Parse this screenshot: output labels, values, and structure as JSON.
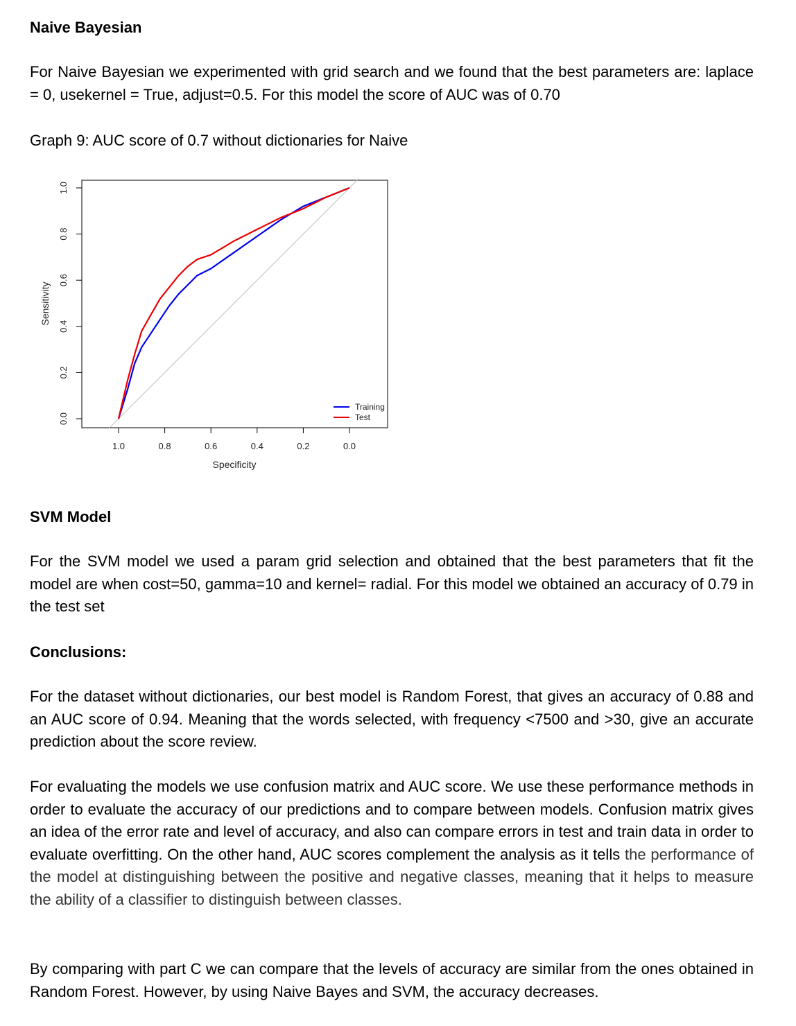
{
  "naive": {
    "heading": "Naive Bayesian",
    "paragraph": "For Naive Bayesian we experimented with grid search and we found that the best parameters are: laplace = 0, usekernel = True, adjust=0.5. For this model the score of AUC was of 0.70",
    "caption": "Graph 9: AUC score of 0.7 without dictionaries for Naive"
  },
  "chart_data": {
    "type": "line",
    "title": "",
    "xlabel": "Specificity",
    "ylabel": "Sensitivity",
    "xlim": [
      1.0,
      0.0
    ],
    "ylim": [
      0.0,
      1.0
    ],
    "x_reversed": true,
    "x_ticks": [
      "1.0",
      "0.8",
      "0.6",
      "0.4",
      "0.2",
      "0.0"
    ],
    "y_ticks": [
      "0.0",
      "0.2",
      "0.4",
      "0.6",
      "0.8",
      "1.0"
    ],
    "grid": false,
    "legend_position": "bottom-right",
    "reference_line": {
      "from": [
        1.0,
        0.0
      ],
      "to": [
        0.0,
        1.0
      ],
      "color": "#bfbfbf"
    },
    "series": [
      {
        "name": "Training",
        "color": "#0000ee",
        "points": [
          [
            1.0,
            0.0
          ],
          [
            0.96,
            0.13
          ],
          [
            0.93,
            0.24
          ],
          [
            0.9,
            0.31
          ],
          [
            0.86,
            0.37
          ],
          [
            0.82,
            0.43
          ],
          [
            0.78,
            0.49
          ],
          [
            0.74,
            0.54
          ],
          [
            0.7,
            0.58
          ],
          [
            0.66,
            0.62
          ],
          [
            0.6,
            0.65
          ],
          [
            0.5,
            0.72
          ],
          [
            0.4,
            0.79
          ],
          [
            0.3,
            0.86
          ],
          [
            0.2,
            0.92
          ],
          [
            0.1,
            0.96
          ],
          [
            0.0,
            1.0
          ]
        ]
      },
      {
        "name": "Test",
        "color": "#ee0000",
        "points": [
          [
            1.0,
            0.0
          ],
          [
            0.96,
            0.17
          ],
          [
            0.93,
            0.28
          ],
          [
            0.9,
            0.38
          ],
          [
            0.86,
            0.45
          ],
          [
            0.82,
            0.52
          ],
          [
            0.78,
            0.57
          ],
          [
            0.74,
            0.62
          ],
          [
            0.7,
            0.66
          ],
          [
            0.66,
            0.69
          ],
          [
            0.6,
            0.71
          ],
          [
            0.5,
            0.77
          ],
          [
            0.4,
            0.82
          ],
          [
            0.3,
            0.87
          ],
          [
            0.2,
            0.91
          ],
          [
            0.1,
            0.96
          ],
          [
            0.0,
            1.0
          ]
        ]
      }
    ]
  },
  "svm": {
    "heading": "SVM Model",
    "paragraph": "For the SVM model we used a param grid selection and obtained that the best parameters that fit the model are when cost=50, gamma=10 and kernel= radial. For this model we obtained an accuracy of 0.79 in the test set"
  },
  "conclusions": {
    "heading": "Conclusions:",
    "p1": "For the dataset without dictionaries, our best model is Random Forest, that gives an accuracy of 0.88 and an AUC score of 0.94. Meaning that the words selected, with frequency <7500 and >30, give an accurate prediction about the score review.",
    "p2": "For evaluating the models we use confusion matrix and AUC score. We use these performance methods in order to evaluate the accuracy of our predictions and to compare between models. Confusion matrix gives an idea of the error rate and level of accuracy, and also can compare errors in test and train data in order to evaluate overfitting. On the other hand, AUC scores complement the analysis as it tells",
    "p2_grey": "the performance of the model at distinguishing between the positive and negative classes, meaning that it helps to measure the ability of a classifier to distinguish between classes.",
    "p3": "By comparing with part C we can compare that the levels of accuracy are similar from the ones obtained in Random Forest. However, by using Naive Bayes and SVM, the accuracy decreases."
  }
}
